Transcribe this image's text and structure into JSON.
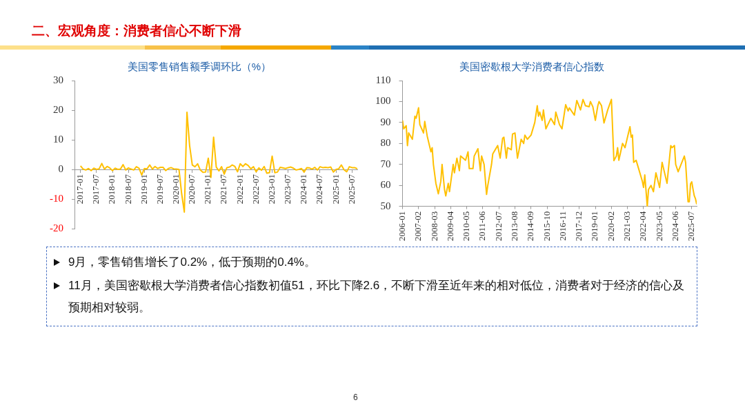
{
  "chart_data": [
    {
      "type": "other",
      "title": "二、宏观角度：消费者信心不断下滑"
    },
    {
      "type": "line",
      "title": "美国零售销售额季调环比（%）",
      "marker": "none",
      "grid": false,
      "legend": false,
      "xlim": [
        "2016-11",
        "2025-09"
      ],
      "xticks": [
        "2017-01",
        "2017-07",
        "2018-01",
        "2018-07",
        "2019-01",
        "2019-07",
        "2020-01",
        "2020-07",
        "2021-01",
        "2021-07",
        "2022-01",
        "2022-07",
        "2023-01",
        "2023-07",
        "2024-01",
        "2024-07",
        "2025-01",
        "2025-07"
      ],
      "ylim": [
        -20,
        30
      ],
      "yticks": [
        -20,
        -10,
        0,
        10,
        20,
        30
      ],
      "series": [
        {
          "color": "#ffc000",
          "x": [
            "2017-01",
            "2017-02",
            "2017-03",
            "2017-04",
            "2017-05",
            "2017-06",
            "2017-07",
            "2017-08",
            "2017-09",
            "2017-10",
            "2017-11",
            "2017-12",
            "2018-01",
            "2018-02",
            "2018-03",
            "2018-04",
            "2018-05",
            "2018-06",
            "2018-07",
            "2018-08",
            "2018-09",
            "2018-10",
            "2018-11",
            "2018-12",
            "2019-01",
            "2019-02",
            "2019-03",
            "2019-04",
            "2019-05",
            "2019-06",
            "2019-07",
            "2019-08",
            "2019-09",
            "2019-10",
            "2019-11",
            "2019-12",
            "2020-01",
            "2020-02",
            "2020-03",
            "2020-04",
            "2020-05",
            "2020-06",
            "2020-07",
            "2020-08",
            "2020-09",
            "2020-10",
            "2020-11",
            "2020-12",
            "2021-01",
            "2021-02",
            "2021-03",
            "2021-04",
            "2021-05",
            "2021-06",
            "2021-07",
            "2021-08",
            "2021-09",
            "2021-10",
            "2021-11",
            "2021-12",
            "2022-01",
            "2022-02",
            "2022-03",
            "2022-04",
            "2022-05",
            "2022-06",
            "2022-07",
            "2022-08",
            "2022-09",
            "2022-10",
            "2022-11",
            "2022-12",
            "2023-01",
            "2023-02",
            "2023-03",
            "2023-04",
            "2023-05",
            "2023-06",
            "2023-07",
            "2023-08",
            "2023-09",
            "2023-10",
            "2023-11",
            "2023-12",
            "2024-01",
            "2024-02",
            "2024-03",
            "2024-04",
            "2024-05",
            "2024-06",
            "2024-07",
            "2024-08",
            "2024-09",
            "2024-10",
            "2024-11",
            "2024-12",
            "2025-01",
            "2025-02",
            "2025-03",
            "2025-04",
            "2025-05",
            "2025-06",
            "2025-07",
            "2025-08",
            "2025-09"
          ],
          "values": [
            1.2,
            0.1,
            -0.2,
            0.3,
            -0.4,
            0.4,
            0,
            0.2,
            2.0,
            0.1,
            1.0,
            0.5,
            -0.4,
            0.4,
            0,
            0.1,
            1.6,
            -0.2,
            0.5,
            0.1,
            -0.2,
            0.9,
            0.4,
            -1.9,
            0.3,
            0.2,
            1.5,
            0.1,
            1.0,
            0.3,
            0.7,
            0.7,
            -0.4,
            0.3,
            0.6,
            0.2,
            0.1,
            0,
            -8.2,
            -14.4,
            19.3,
            8.0,
            1.5,
            0.9,
            1.9,
            -0.2,
            -1.0,
            -0.9,
            3.8,
            -2.7,
            10.9,
            0.8,
            -0.5,
            0.9,
            -1.6,
            0.6,
            0.8,
            1.5,
            1.0,
            -0.8,
            1.9,
            1.0,
            1.9,
            1.3,
            0.2,
            0.9,
            -0.8,
            0.5,
            -0.3,
            1.0,
            -1.3,
            -1.1,
            4.5,
            -1.1,
            -0.9,
            0.7,
            0.5,
            0.3,
            0.6,
            0.8,
            0.4,
            -0.2,
            0,
            0.3,
            -0.9,
            0.6,
            0.5,
            0.1,
            0.7,
            -0.2,
            0.9,
            0.6,
            0.7,
            0.6,
            0.8,
            -0.9,
            0,
            0.2,
            1.5,
            -0.1,
            -0.8,
            0.9,
            0.6,
            0.6,
            0.2
          ]
        }
      ]
    },
    {
      "type": "line",
      "title": "美国密歇根大学消费者信心指数",
      "marker": "none",
      "grid": false,
      "legend": false,
      "xlim": [
        "2006-01",
        "2025-11"
      ],
      "xticks": [
        "2006-01",
        "2007-02",
        "2008-03",
        "2009-04",
        "2010-05",
        "2011-06",
        "2012-07",
        "2013-08",
        "2014-09",
        "2015-10",
        "2016-11",
        "2017-12",
        "2019-01",
        "2020-02",
        "2021-03",
        "2022-04",
        "2023-05",
        "2024-06",
        "2025-07"
      ],
      "ylim": [
        50,
        110
      ],
      "yticks": [
        50,
        60,
        70,
        80,
        90,
        100,
        110
      ],
      "series": [
        {
          "color": "#ffc000",
          "x": [
            "2006-01",
            "2006-02",
            "2006-04",
            "2006-05",
            "2006-06",
            "2006-09",
            "2006-11",
            "2006-12",
            "2007-02",
            "2007-03",
            "2007-06",
            "2007-07",
            "2007-09",
            "2007-12",
            "2008-01",
            "2008-02",
            "2008-04",
            "2008-06",
            "2008-08",
            "2008-09",
            "2008-11",
            "2008-12",
            "2009-02",
            "2009-03",
            "2009-06",
            "2009-07",
            "2009-09",
            "2009-11",
            "2009-12",
            "2010-04",
            "2010-06",
            "2010-07",
            "2010-10",
            "2010-11",
            "2011-02",
            "2011-04",
            "2011-05",
            "2011-07",
            "2011-09",
            "2011-10",
            "2012-01",
            "2012-02",
            "2012-06",
            "2012-08",
            "2012-10",
            "2012-11",
            "2013-01",
            "2013-02",
            "2013-05",
            "2013-06",
            "2013-08",
            "2013-10",
            "2014-01",
            "2014-03",
            "2014-04",
            "2014-06",
            "2014-09",
            "2014-12",
            "2015-02",
            "2015-03",
            "2015-04",
            "2015-06",
            "2015-07",
            "2015-09",
            "2016-01",
            "2016-04",
            "2016-05",
            "2016-08",
            "2016-10",
            "2017-01",
            "2017-03",
            "2017-04",
            "2017-08",
            "2017-10",
            "2018-01",
            "2018-03",
            "2018-05",
            "2018-08",
            "2018-09",
            "2018-11",
            "2019-01",
            "2019-03",
            "2019-04",
            "2019-06",
            "2019-08",
            "2019-11",
            "2020-02",
            "2020-04",
            "2020-06",
            "2020-07",
            "2020-08",
            "2020-11",
            "2021-01",
            "2021-05",
            "2021-06",
            "2021-07",
            "2021-08",
            "2021-10",
            "2021-12",
            "2022-03",
            "2022-04",
            "2022-05",
            "2022-07",
            "2022-08",
            "2022-10",
            "2022-12",
            "2023-02",
            "2023-05",
            "2023-07",
            "2023-11",
            "2024-02",
            "2024-03",
            "2024-05",
            "2024-06",
            "2024-08",
            "2025-01",
            "2025-02",
            "2025-04",
            "2025-05",
            "2025-06",
            "2025-07",
            "2025-08",
            "2025-09",
            "2025-10",
            "2025-11"
          ],
          "values": [
            91,
            87,
            88.5,
            79,
            85,
            82,
            93,
            92,
            97,
            89,
            85,
            90.5,
            83.5,
            76,
            78,
            70,
            61,
            56,
            62,
            70,
            58,
            55,
            61,
            57,
            70,
            66,
            73,
            67,
            74,
            72,
            76,
            68,
            68,
            74,
            77.5,
            67,
            74,
            70,
            55.7,
            60,
            70,
            75,
            79,
            73,
            82.5,
            83,
            73,
            78,
            77,
            84.5,
            85,
            73,
            82,
            80,
            84,
            82,
            84,
            90,
            98,
            93,
            95,
            91,
            96,
            87,
            92,
            89,
            95,
            89,
            87,
            98.5,
            95.5,
            97,
            93.5,
            100.5,
            96,
            101,
            98,
            97.5,
            100,
            97.5,
            91,
            98,
            100,
            98,
            89.8,
            96,
            101,
            71.8,
            74,
            78,
            72,
            80,
            78,
            88,
            83,
            84,
            71,
            72,
            68,
            62,
            59,
            65,
            50,
            58,
            60,
            57,
            66,
            59,
            71,
            61,
            79,
            78,
            79,
            70,
            66.5,
            74,
            71,
            52.2,
            52.2,
            60.7,
            61.7,
            58.2,
            55.1,
            53.6,
            51
          ]
        }
      ]
    },
    {
      "type": "other",
      "annotations": [
        "9月，零售销售增长了0.2%，低于预期的0.4%。",
        "11月，美国密歇根大学消费者信心指数初值51，环比下降2.6，不断下滑至近年来的相对低位，消费者对于经济的信心及预期相对较弱。",
        "6"
      ]
    }
  ]
}
